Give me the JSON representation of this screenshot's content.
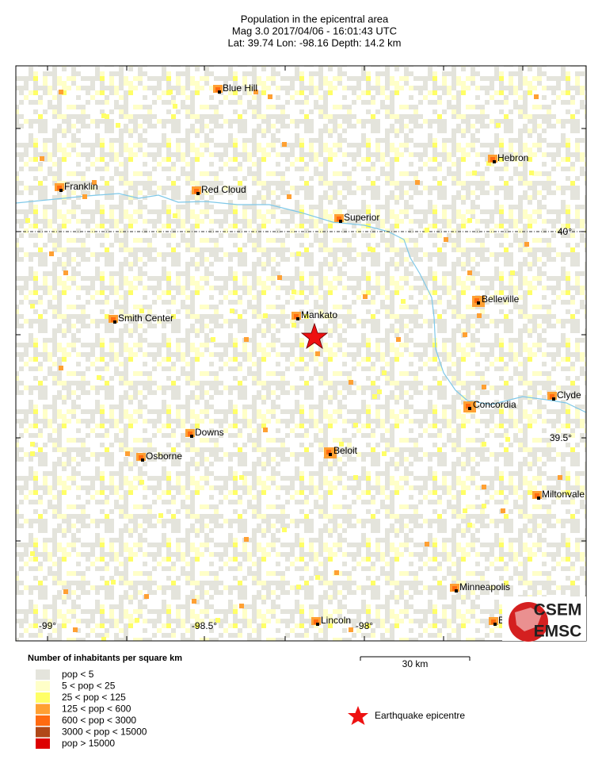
{
  "header": {
    "title": "Population in the epicentral area",
    "line2": "Mag 3.0  2017/04/06 - 16:01:43 UTC",
    "line3": "Lat: 39.74   Lon: -98.16     Depth:  14.2 km"
  },
  "map": {
    "towns": [
      "Blue Hill",
      "Franklin",
      "Red Cloud",
      "Superior",
      "Hebron",
      "Mankato",
      "Smith Center",
      "Belleville",
      "Concordia",
      "Clyde",
      "Downs",
      "Beloit",
      "Osborne",
      "Miltonvale",
      "Minneapolis",
      "Lincoln",
      "B"
    ],
    "lon_labels": [
      "-99°",
      "-98.5°",
      "-98°"
    ],
    "lat_labels": [
      "40°",
      "39.5°"
    ],
    "scale_bar": "30 km"
  },
  "legend": {
    "title": "Number of inhabitants per square km",
    "items": [
      {
        "label": "pop < 5",
        "color": "#e4e4dc"
      },
      {
        "label": "5 < pop < 25",
        "color": "#ffffc8"
      },
      {
        "label": "25 < pop < 125",
        "color": "#ffff66"
      },
      {
        "label": "125 < pop < 600",
        "color": "#ffa033"
      },
      {
        "label": "600 < pop < 3000",
        "color": "#ff6a10"
      },
      {
        "label": "3000 < pop < 15000",
        "color": "#b04818"
      },
      {
        "label": "pop > 15000",
        "color": "#dd0000"
      }
    ],
    "epicentre": "Earthquake epicentre"
  },
  "logo": {
    "top": "CSEM",
    "bottom": "EMSC"
  }
}
